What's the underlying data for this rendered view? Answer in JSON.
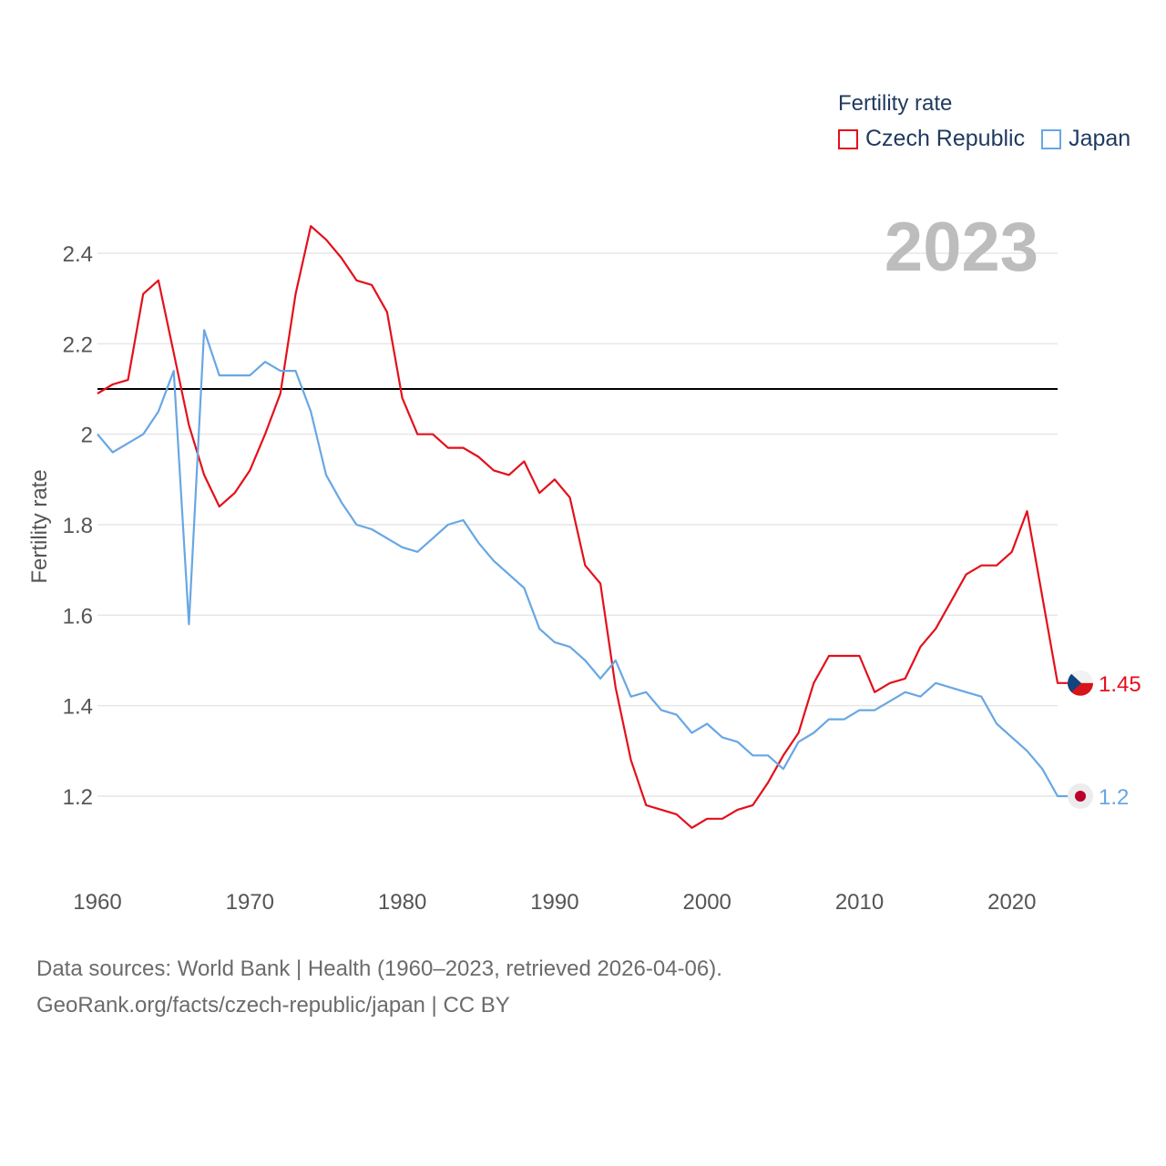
{
  "legend": {
    "title": "Fertility rate",
    "items": [
      {
        "label": "Czech Republic",
        "color": "#e3101b"
      },
      {
        "label": "Japan",
        "color": "#67a7e4"
      }
    ]
  },
  "current_year": "2023",
  "footer": {
    "source": "Data sources: World Bank | Health (1960–2023, retrieved 2026-04-06).",
    "attribution": "GeoRank.org/facts/czech-republic/japan | CC BY"
  },
  "chart_data": {
    "type": "line",
    "ylabel": "Fertility rate",
    "xlabel": "",
    "xlim": [
      1960,
      2023
    ],
    "ylim": [
      1.05,
      2.5
    ],
    "yticks": [
      1.2,
      1.4,
      1.6,
      1.8,
      2.2,
      2.4
    ],
    "ytick_labels": [
      "1.2",
      "1.4",
      "1.6",
      "1.8",
      "2",
      "2.2",
      "2.4"
    ],
    "ytick_values": [
      1.2,
      1.4,
      1.6,
      1.8,
      2.0,
      2.2,
      2.4
    ],
    "xticks": [
      1960,
      1970,
      1980,
      1990,
      2000,
      2010,
      2020
    ],
    "reference_line": 2.1,
    "x": [
      1960,
      1961,
      1962,
      1963,
      1964,
      1965,
      1966,
      1967,
      1968,
      1969,
      1970,
      1971,
      1972,
      1973,
      1974,
      1975,
      1976,
      1977,
      1978,
      1979,
      1980,
      1981,
      1982,
      1983,
      1984,
      1985,
      1986,
      1987,
      1988,
      1989,
      1990,
      1991,
      1992,
      1993,
      1994,
      1995,
      1996,
      1997,
      1998,
      1999,
      2000,
      2001,
      2002,
      2003,
      2004,
      2005,
      2006,
      2007,
      2008,
      2009,
      2010,
      2011,
      2012,
      2013,
      2014,
      2015,
      2016,
      2017,
      2018,
      2019,
      2020,
      2021,
      2022,
      2023
    ],
    "series": [
      {
        "name": "Czech Republic",
        "color": "#e3101b",
        "end_label": "1.45",
        "values": [
          2.09,
          2.11,
          2.12,
          2.31,
          2.34,
          2.18,
          2.02,
          1.91,
          1.84,
          1.87,
          1.92,
          2.0,
          2.09,
          2.31,
          2.46,
          2.43,
          2.39,
          2.34,
          2.33,
          2.27,
          2.08,
          2.0,
          2.0,
          1.97,
          1.97,
          1.95,
          1.92,
          1.91,
          1.94,
          1.87,
          1.9,
          1.86,
          1.71,
          1.67,
          1.44,
          1.28,
          1.18,
          1.17,
          1.16,
          1.13,
          1.15,
          1.15,
          1.17,
          1.18,
          1.23,
          1.29,
          1.34,
          1.45,
          1.51,
          1.51,
          1.51,
          1.43,
          1.45,
          1.46,
          1.53,
          1.57,
          1.63,
          1.69,
          1.71,
          1.71,
          1.74,
          1.83,
          1.64,
          1.45
        ]
      },
      {
        "name": "Japan",
        "color": "#67a7e4",
        "end_label": "1.2",
        "values": [
          2.0,
          1.96,
          1.98,
          2.0,
          2.05,
          2.14,
          1.58,
          2.23,
          2.13,
          2.13,
          2.13,
          2.16,
          2.14,
          2.14,
          2.05,
          1.91,
          1.85,
          1.8,
          1.79,
          1.77,
          1.75,
          1.74,
          1.77,
          1.8,
          1.81,
          1.76,
          1.72,
          1.69,
          1.66,
          1.57,
          1.54,
          1.53,
          1.5,
          1.46,
          1.5,
          1.42,
          1.43,
          1.39,
          1.38,
          1.34,
          1.36,
          1.33,
          1.32,
          1.29,
          1.29,
          1.26,
          1.32,
          1.34,
          1.37,
          1.37,
          1.39,
          1.39,
          1.41,
          1.43,
          1.42,
          1.45,
          1.44,
          1.43,
          1.42,
          1.36,
          1.33,
          1.3,
          1.26,
          1.2
        ]
      }
    ]
  }
}
